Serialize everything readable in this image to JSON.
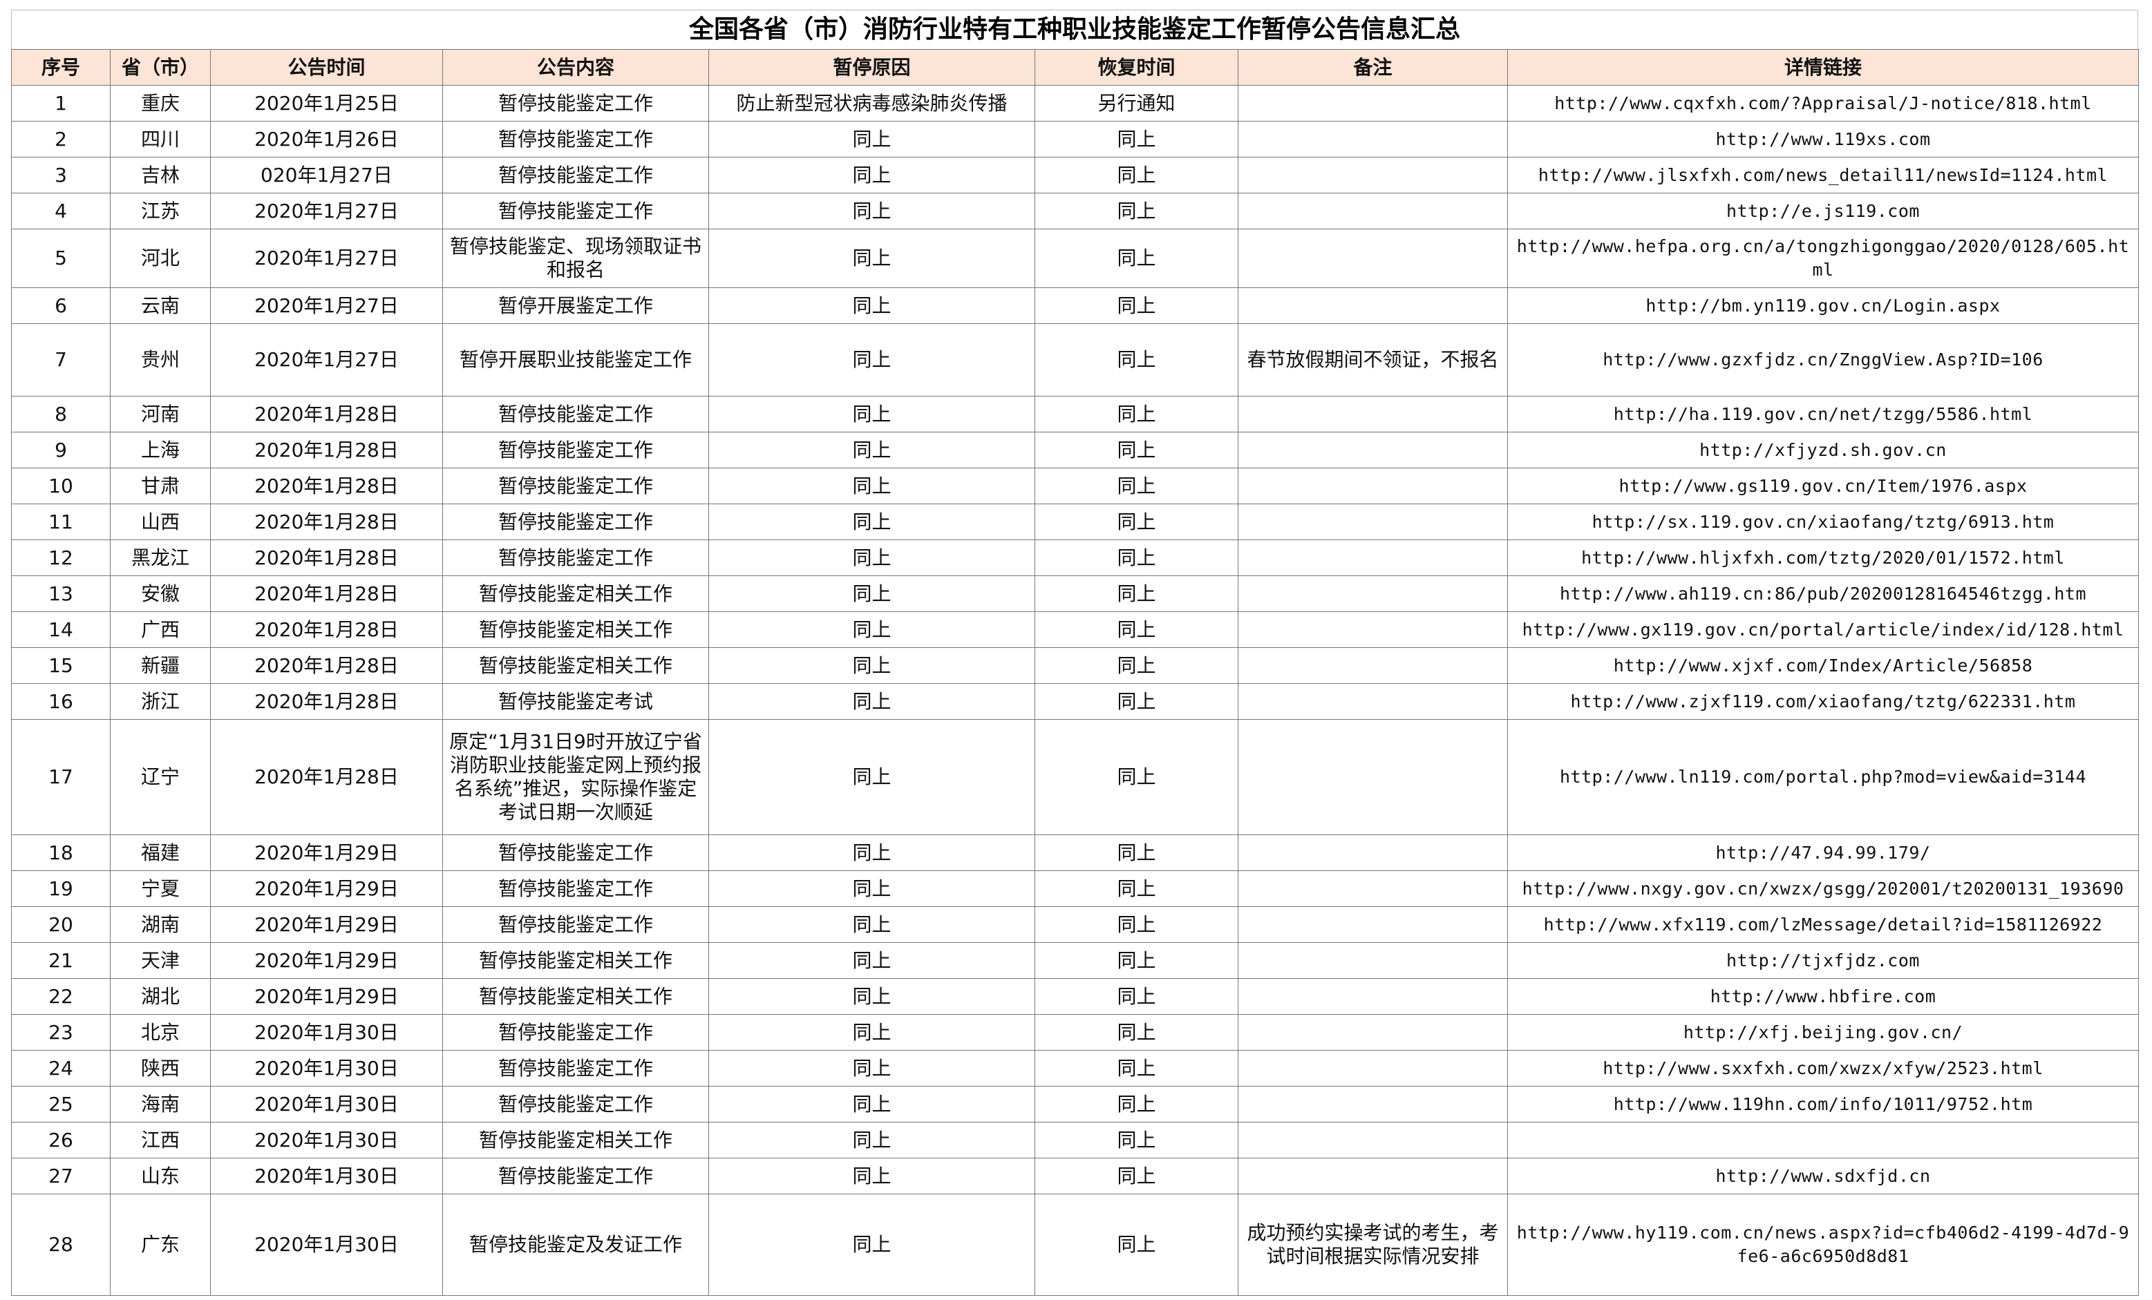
{
  "title": "全国各省（市）消防行业特有工种职业技能鉴定工作暂停公告信息汇总",
  "table": {
    "header": [
      "序号",
      "省（市）",
      "公告时间",
      "公告内容",
      "暂停原因",
      "恢复时间",
      "备注",
      "详情链接"
    ],
    "rows": [
      [
        "1",
        "重庆",
        "2020年1月25日",
        "暂停技能鉴定工作",
        "防止新型冠状病毒感染肺炎传播",
        "另行通知",
        null,
        "http://www.cqxfxh.com/?Appraisal/J-notice/818.html"
      ],
      [
        "2",
        "四川",
        "2020年1月26日",
        "暂停技能鉴定工作",
        "同上",
        "同上",
        null,
        "http://www.119xs.com"
      ],
      [
        "3",
        "吉林",
        "020年1月27日",
        "暂停技能鉴定工作",
        "同上",
        "同上",
        null,
        "http://www.jlsxfxh.com/news_detail11/newsId=1124.html"
      ],
      [
        "4",
        "江苏",
        "2020年1月27日",
        "暂停技能鉴定工作",
        "同上",
        "同上",
        null,
        "http://e.js119.com"
      ],
      [
        "5",
        "河北",
        "2020年1月27日",
        "暂停技能鉴定、现场领取证书和报名",
        "同上",
        "同上",
        null,
        "http://www.hefpa.org.cn/a/tongzhigonggao/2020/0128/605.html"
      ],
      [
        "6",
        "云南",
        "2020年1月27日",
        "暂停开展鉴定工作",
        "同上",
        "同上",
        null,
        "http://bm.yn119.gov.cn/Login.aspx"
      ],
      [
        "7",
        "贵州",
        "2020年1月27日",
        "暂停开展职业技能鉴定工作",
        "同上",
        "同上",
        "春节放假期间不领证，不报名",
        "http://www.gzxfjdz.cn/ZnggView.Asp?ID=106"
      ],
      [
        "8",
        "河南",
        "2020年1月28日",
        "暂停技能鉴定工作",
        "同上",
        "同上",
        null,
        "http://ha.119.gov.cn/net/tzgg/5586.html"
      ],
      [
        "9",
        "上海",
        "2020年1月28日",
        "暂停技能鉴定工作",
        "同上",
        "同上",
        null,
        "http://xfjyzd.sh.gov.cn"
      ],
      [
        "10",
        "甘肃",
        "2020年1月28日",
        "暂停技能鉴定工作",
        "同上",
        "同上",
        null,
        "http://www.gs119.gov.cn/Item/1976.aspx"
      ],
      [
        "11",
        "山西",
        "2020年1月28日",
        "暂停技能鉴定工作",
        "同上",
        "同上",
        null,
        "http://sx.119.gov.cn/xiaofang/tztg/6913.htm"
      ],
      [
        "12",
        "黑龙江",
        "2020年1月28日",
        "暂停技能鉴定工作",
        "同上",
        "同上",
        null,
        "http://www.hljxfxh.com/tztg/2020/01/1572.html"
      ],
      [
        "13",
        "安徽",
        "2020年1月28日",
        "暂停技能鉴定相关工作",
        "同上",
        "同上",
        null,
        "http://www.ah119.cn:86/pub/20200128164546tzgg.htm"
      ],
      [
        "14",
        "广西",
        "2020年1月28日",
        "暂停技能鉴定相关工作",
        "同上",
        "同上",
        null,
        "http://www.gx119.gov.cn/portal/article/index/id/128.html"
      ],
      [
        "15",
        "新疆",
        "2020年1月28日",
        "暂停技能鉴定相关工作",
        "同上",
        "同上",
        null,
        "http://www.xjxf.com/Index/Article/56858"
      ],
      [
        "16",
        "浙江",
        "2020年1月28日",
        "暂停技能鉴定考试",
        "同上",
        "同上",
        null,
        "http://www.zjxf119.com/xiaofang/tztg/622331.htm"
      ],
      [
        "17",
        "辽宁",
        "2020年1月28日",
        "原定“1月31日9时开放辽宁省消防职业技能鉴定网上预约报名系统”推迟，实际操作鉴定考试日期一次顺延",
        "同上",
        "同上",
        null,
        "http://www.ln119.com/portal.php?mod=view&aid=3144"
      ],
      [
        "18",
        "福建",
        "2020年1月29日",
        "暂停技能鉴定工作",
        "同上",
        "同上",
        null,
        "http://47.94.99.179/"
      ],
      [
        "19",
        "宁夏",
        "2020年1月29日",
        "暂停技能鉴定工作",
        "同上",
        "同上",
        null,
        "http://www.nxgy.gov.cn/xwzx/gsgg/202001/t20200131_193690"
      ],
      [
        "20",
        "湖南",
        "2020年1月29日",
        "暂停技能鉴定工作",
        "同上",
        "同上",
        null,
        "http://www.xfx119.com/lzMessage/detail?id=1581126922"
      ],
      [
        "21",
        "天津",
        "2020年1月29日",
        "暂停技能鉴定相关工作",
        "同上",
        "同上",
        null,
        "http://tjxfjdz.com"
      ],
      [
        "22",
        "湖北",
        "2020年1月29日",
        "暂停技能鉴定相关工作",
        "同上",
        "同上",
        null,
        "http://www.hbfire.com"
      ],
      [
        "23",
        "北京",
        "2020年1月30日",
        "暂停技能鉴定工作",
        "同上",
        "同上",
        null,
        "http://xfj.beijing.gov.cn/"
      ],
      [
        "24",
        "陕西",
        "2020年1月30日",
        "暂停技能鉴定工作",
        "同上",
        "同上",
        null,
        "http://www.sxxfxh.com/xwzx/xfyw/2523.html"
      ],
      [
        "25",
        "海南",
        "2020年1月30日",
        "暂停技能鉴定工作",
        "同上",
        "同上",
        null,
        "http://www.119hn.com/info/1011/9752.htm"
      ],
      [
        "26",
        "江西",
        "2020年1月30日",
        "暂停技能鉴定相关工作",
        "同上",
        "同上",
        null,
        null
      ],
      [
        "27",
        "山东",
        "2020年1月30日",
        "暂停技能鉴定工作",
        "同上",
        "同上",
        null,
        "http://www.sdxfjd.cn"
      ],
      [
        "28",
        "广东",
        "2020年1月30日",
        "暂停技能鉴定及发证工作",
        "同上",
        "同上",
        "成功预约实操考试的考生，考试时间根据实际情况安排",
        "http://www.hy119.com.cn/news.aspx?id=cfb406d2-4199-4d7d-9fe6-a6c6950d8d81"
      ]
    ]
  }
}
